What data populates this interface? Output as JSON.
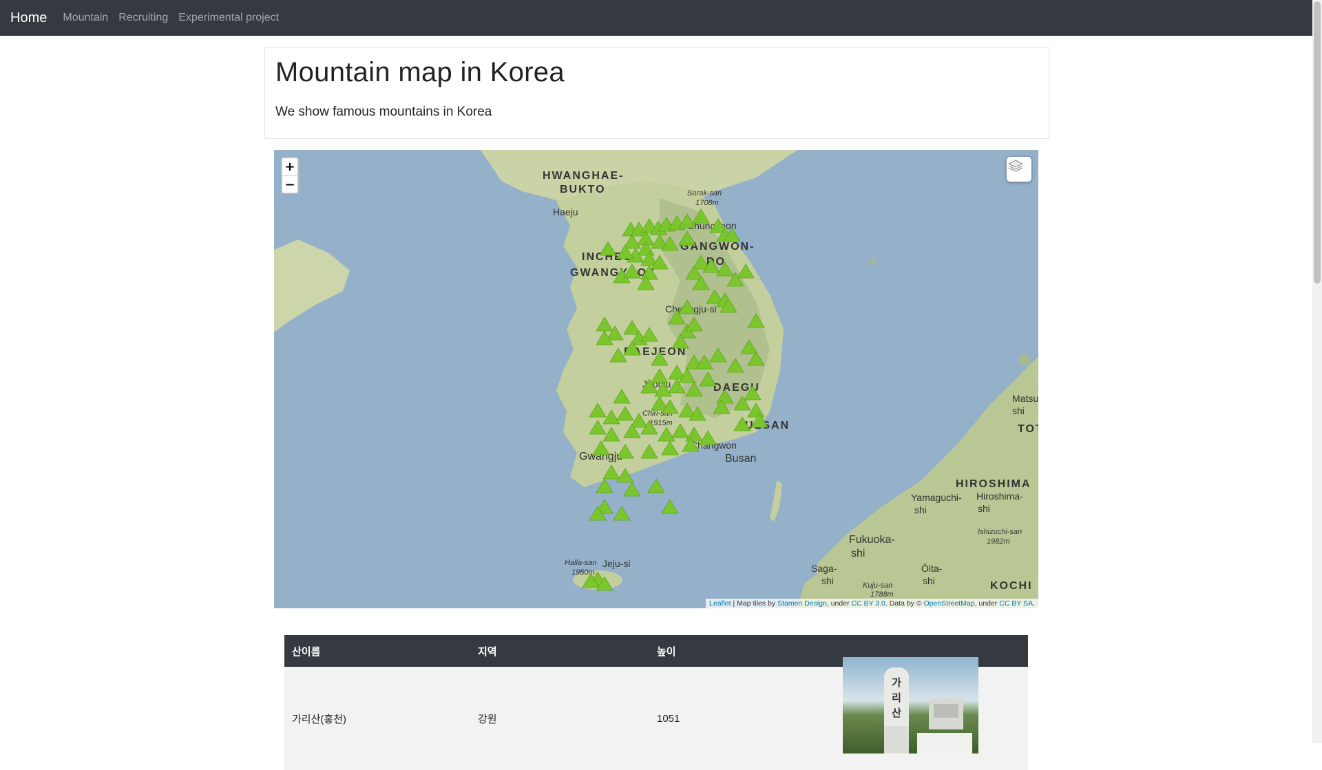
{
  "navbar": {
    "brand": "Home",
    "links": [
      "Mountain",
      "Recruiting",
      "Experimental project"
    ]
  },
  "jumbotron": {
    "title": "Mountain map in Korea",
    "lead": "We show famous mountains in Korea"
  },
  "map": {
    "zoom_in": "+",
    "zoom_out": "−",
    "water_color": "#94b1c9",
    "land_color": "#c9d3a6",
    "marker_color": "#7cc62d",
    "labels": {
      "hwanghae": "HWANGHAE-",
      "bukto": "BUKTO",
      "haeju": "Haeju",
      "sorak": "Sorak-san",
      "sorak_h": "1708m",
      "chuncheon": "Chuncheon",
      "gangwon": "GANGWON-",
      "do": "DO",
      "incheon": "INCHEON",
      "gwangyeok": "GWANGYEOK",
      "cheongju": "Cheongju-si",
      "daejeon": "DAEJEON",
      "jeonju": "Jeonju",
      "daegu": "DAEGU",
      "chiri": "Chiri-san",
      "chiri_h": "1915m",
      "ulsan": "ULSAN",
      "changwon": "Changwon",
      "busan": "Busan",
      "gwangju": "Gwangju",
      "halla": "Halla-san",
      "halla_h": "1950m",
      "jeju": "Jeju-si",
      "matsue": "Matsue-",
      "matsue2": "shi",
      "tottori": "TOT",
      "hiroshima_pref": "HIROSHIMA",
      "hiroshima": "Hiroshima-",
      "hiroshima2": "shi",
      "yamaguchi": "Yamaguchi-",
      "yamaguchi2": "shi",
      "ishizuchi": "Ishizuchi-san",
      "ishizuchi_h": "1982m",
      "fukuoka": "Fukuoka-",
      "fukuoka2": "shi",
      "saga": "Saga-",
      "saga2": "shi",
      "kuju": "Kuju-san",
      "kuju_h": "1788m",
      "oita": "Ōita-",
      "oita2": "shi",
      "kochi": "KOCHI"
    },
    "attribution": {
      "leaflet": "Leaflet",
      "sep": " | Map tiles by ",
      "stamen": "Stamen Design",
      "under1": ", under ",
      "ccby": "CC BY 3.0",
      "data": ". Data by © ",
      "osm": "OpenStreetMap",
      "under2": ", under ",
      "ccbysa": "CC BY SA",
      "end": "."
    }
  },
  "table": {
    "headers": [
      "산이름",
      "지역",
      "높이",
      ""
    ],
    "rows": [
      {
        "name": "가리산(홍천)",
        "region": "강원",
        "height": "1051",
        "photo_text": "가리산"
      }
    ]
  }
}
